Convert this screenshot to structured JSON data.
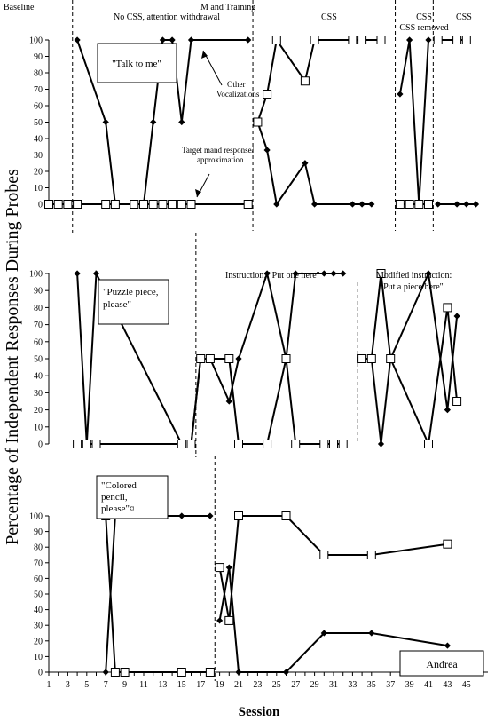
{
  "figure": {
    "y_axis_label": "Percentage of Independent Responses During Probes",
    "x_axis_label": "Session",
    "phase_labels": {
      "baseline": "Baseline",
      "no_css": "No CSS, attention withdrawal",
      "m_training": "M and Training",
      "css_1": "CSS",
      "css_removed": "CSS removed",
      "css_2": "CSS",
      "instruction": "Instruction: \"Put one here\"",
      "modified_instruction": "Modified instruction: \"Put a piece here\""
    },
    "annotations": {
      "other_vocalizations": "Other Vocalizations",
      "target_mand": "Target mand response/ approximation"
    },
    "panel_boxes": [
      "\"Talk to me\"",
      "\"Puzzle piece, please\"",
      "\"Colored pencil, please\"¤"
    ],
    "participant": "Andrea"
  },
  "chart_data": [
    {
      "type": "line",
      "title": "\"Talk to me\"",
      "ylim": [
        0,
        100
      ],
      "yticks": [
        0,
        10,
        20,
        30,
        40,
        50,
        60,
        70,
        80,
        90,
        100
      ],
      "phase_changes": [
        3.5,
        22.5,
        37.5,
        41.5
      ],
      "series": [
        {
          "name": "Other Vocalizations",
          "marker": "diamond",
          "segments": [
            [
              [
                1,
                0
              ],
              [
                2,
                0
              ],
              [
                3,
                0
              ]
            ],
            [
              [
                4,
                100
              ],
              [
                7,
                50
              ],
              [
                8,
                0
              ],
              [
                10,
                0
              ],
              [
                11,
                0
              ],
              [
                12,
                50
              ],
              [
                13,
                100
              ],
              [
                14,
                100
              ],
              [
                15,
                50
              ],
              [
                16,
                100
              ],
              [
                22,
                100
              ]
            ],
            [
              [
                23,
                50
              ],
              [
                24,
                33
              ],
              [
                25,
                0
              ],
              [
                28,
                25
              ],
              [
                29,
                0
              ],
              [
                33,
                0
              ],
              [
                34,
                0
              ],
              [
                35,
                0
              ]
            ],
            [
              [
                38,
                67
              ],
              [
                39,
                100
              ],
              [
                40,
                0
              ],
              [
                41,
                100
              ]
            ],
            [
              [
                42,
                0
              ],
              [
                44,
                0
              ],
              [
                45,
                0
              ],
              [
                46,
                0
              ]
            ]
          ]
        },
        {
          "name": "Target mand response/ approximation",
          "marker": "square",
          "segments": [
            [
              [
                1,
                0
              ],
              [
                2,
                0
              ],
              [
                3,
                0
              ]
            ],
            [
              [
                4,
                0
              ],
              [
                7,
                0
              ],
              [
                8,
                0
              ],
              [
                10,
                0
              ],
              [
                11,
                0
              ],
              [
                12,
                0
              ],
              [
                13,
                0
              ],
              [
                14,
                0
              ],
              [
                15,
                0
              ],
              [
                16,
                0
              ],
              [
                22,
                0
              ]
            ],
            [
              [
                23,
                50
              ],
              [
                24,
                67
              ],
              [
                25,
                100
              ],
              [
                28,
                75
              ],
              [
                29,
                100
              ],
              [
                33,
                100
              ],
              [
                34,
                100
              ],
              [
                36,
                100
              ]
            ],
            [
              [
                38,
                0
              ],
              [
                39,
                0
              ],
              [
                40,
                0
              ],
              [
                41,
                0
              ]
            ],
            [
              [
                42,
                100
              ],
              [
                44,
                100
              ],
              [
                45,
                100
              ]
            ]
          ]
        }
      ]
    },
    {
      "type": "line",
      "title": "\"Puzzle piece, please\"",
      "ylim": [
        0,
        100
      ],
      "yticks": [
        0,
        10,
        20,
        30,
        40,
        50,
        60,
        70,
        80,
        90,
        100
      ],
      "phase_changes": [
        16.5,
        33.5
      ],
      "series": [
        {
          "name": "Other Vocalizations",
          "marker": "diamond",
          "segments": [
            [
              [
                4,
                100
              ],
              [
                5,
                0
              ],
              [
                6,
                100
              ],
              [
                15,
                0
              ]
            ],
            [
              [
                16,
                0
              ],
              [
                17,
                50
              ],
              [
                18,
                50
              ],
              [
                20,
                25
              ],
              [
                21,
                50
              ],
              [
                24,
                100
              ],
              [
                26,
                50
              ],
              [
                27,
                100
              ],
              [
                30,
                100
              ],
              [
                31,
                100
              ],
              [
                32,
                100
              ]
            ],
            [
              [
                34,
                50
              ],
              [
                35,
                50
              ],
              [
                36,
                0
              ],
              [
                37,
                50
              ],
              [
                41,
                100
              ],
              [
                43,
                20
              ],
              [
                44,
                75
              ]
            ]
          ]
        },
        {
          "name": "Target mand response/ approximation",
          "marker": "square",
          "segments": [
            [
              [
                4,
                0
              ],
              [
                5,
                0
              ],
              [
                6,
                0
              ],
              [
                15,
                0
              ]
            ],
            [
              [
                16,
                0
              ],
              [
                17,
                50
              ],
              [
                18,
                50
              ],
              [
                20,
                50
              ],
              [
                21,
                0
              ],
              [
                24,
                0
              ],
              [
                26,
                50
              ],
              [
                27,
                0
              ],
              [
                30,
                0
              ],
              [
                31,
                0
              ],
              [
                32,
                0
              ]
            ],
            [
              [
                34,
                50
              ],
              [
                35,
                50
              ],
              [
                36,
                100
              ],
              [
                37,
                50
              ],
              [
                41,
                0
              ],
              [
                43,
                80
              ],
              [
                44,
                25
              ]
            ]
          ]
        }
      ]
    },
    {
      "type": "line",
      "title": "\"Colored pencil, please\"¤",
      "ylim": [
        0,
        100
      ],
      "yticks": [
        0,
        10,
        20,
        30,
        40,
        50,
        60,
        70,
        80,
        90,
        100
      ],
      "xticks": [
        1,
        3,
        5,
        7,
        9,
        11,
        13,
        15,
        17,
        19,
        21,
        23,
        25,
        27,
        29,
        31,
        33,
        35,
        37,
        39,
        41,
        43,
        45
      ],
      "xlim": [
        1,
        46
      ],
      "phase_changes": [
        18.5
      ],
      "series": [
        {
          "name": "Other Vocalizations",
          "marker": "diamond",
          "segments": [
            [
              [
                7,
                0
              ],
              [
                8,
                100
              ],
              [
                9,
                100
              ],
              [
                15,
                100
              ],
              [
                18,
                100
              ]
            ],
            [
              [
                19,
                33
              ],
              [
                20,
                67
              ],
              [
                21,
                0
              ],
              [
                26,
                0
              ],
              [
                30,
                25
              ],
              [
                35,
                25
              ],
              [
                43,
                17
              ]
            ]
          ]
        },
        {
          "name": "Target mand response/ approximation",
          "marker": "square",
          "segments": [
            [
              [
                7,
                100
              ],
              [
                8,
                0
              ],
              [
                9,
                0
              ],
              [
                15,
                0
              ],
              [
                18,
                0
              ]
            ],
            [
              [
                19,
                67
              ],
              [
                20,
                33
              ],
              [
                21,
                100
              ],
              [
                26,
                100
              ],
              [
                30,
                75
              ],
              [
                35,
                75
              ],
              [
                43,
                82
              ]
            ]
          ]
        }
      ]
    }
  ]
}
